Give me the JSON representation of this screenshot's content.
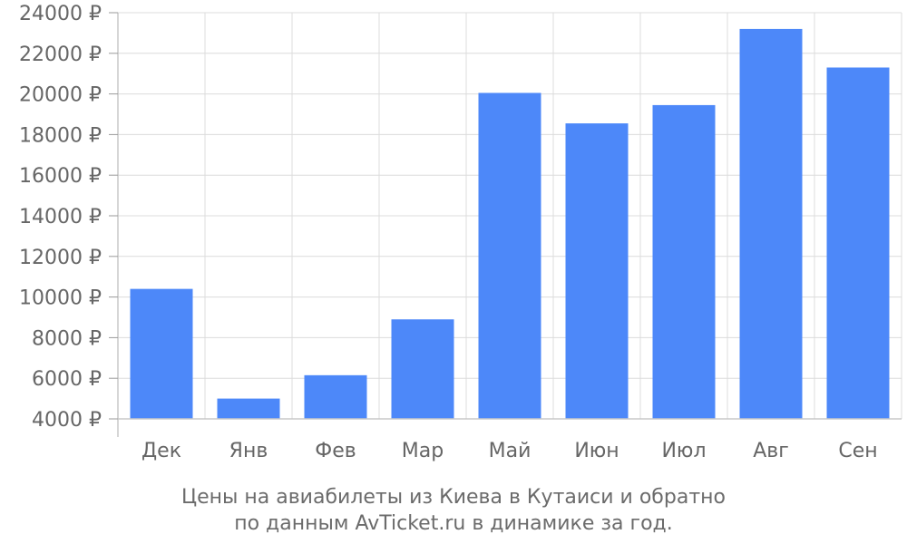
{
  "chart_data": {
    "type": "bar",
    "categories": [
      "Дек",
      "Янв",
      "Фев",
      "Мар",
      "Май",
      "Июн",
      "Июл",
      "Авг",
      "Сен"
    ],
    "values": [
      10400,
      5000,
      6150,
      8900,
      20050,
      18550,
      19450,
      23200,
      21300
    ],
    "ylim": [
      4000,
      24000
    ],
    "yticks": [
      4000,
      6000,
      8000,
      10000,
      12000,
      14000,
      16000,
      18000,
      20000,
      22000,
      24000
    ],
    "ytick_labels": [
      "4000 ₽",
      "6000 ₽",
      "8000 ₽",
      "10000 ₽",
      "12000 ₽",
      "14000 ₽",
      "16000 ₽",
      "18000 ₽",
      "20000 ₽",
      "22000 ₽",
      "24000 ₽"
    ],
    "caption_lines": [
      "Цены на авиабилеты из Киева в Кутаиси и обратно",
      "по данным AvTicket.ru в динамике за год."
    ],
    "grid": true,
    "bar_color": "#4d88f9"
  }
}
